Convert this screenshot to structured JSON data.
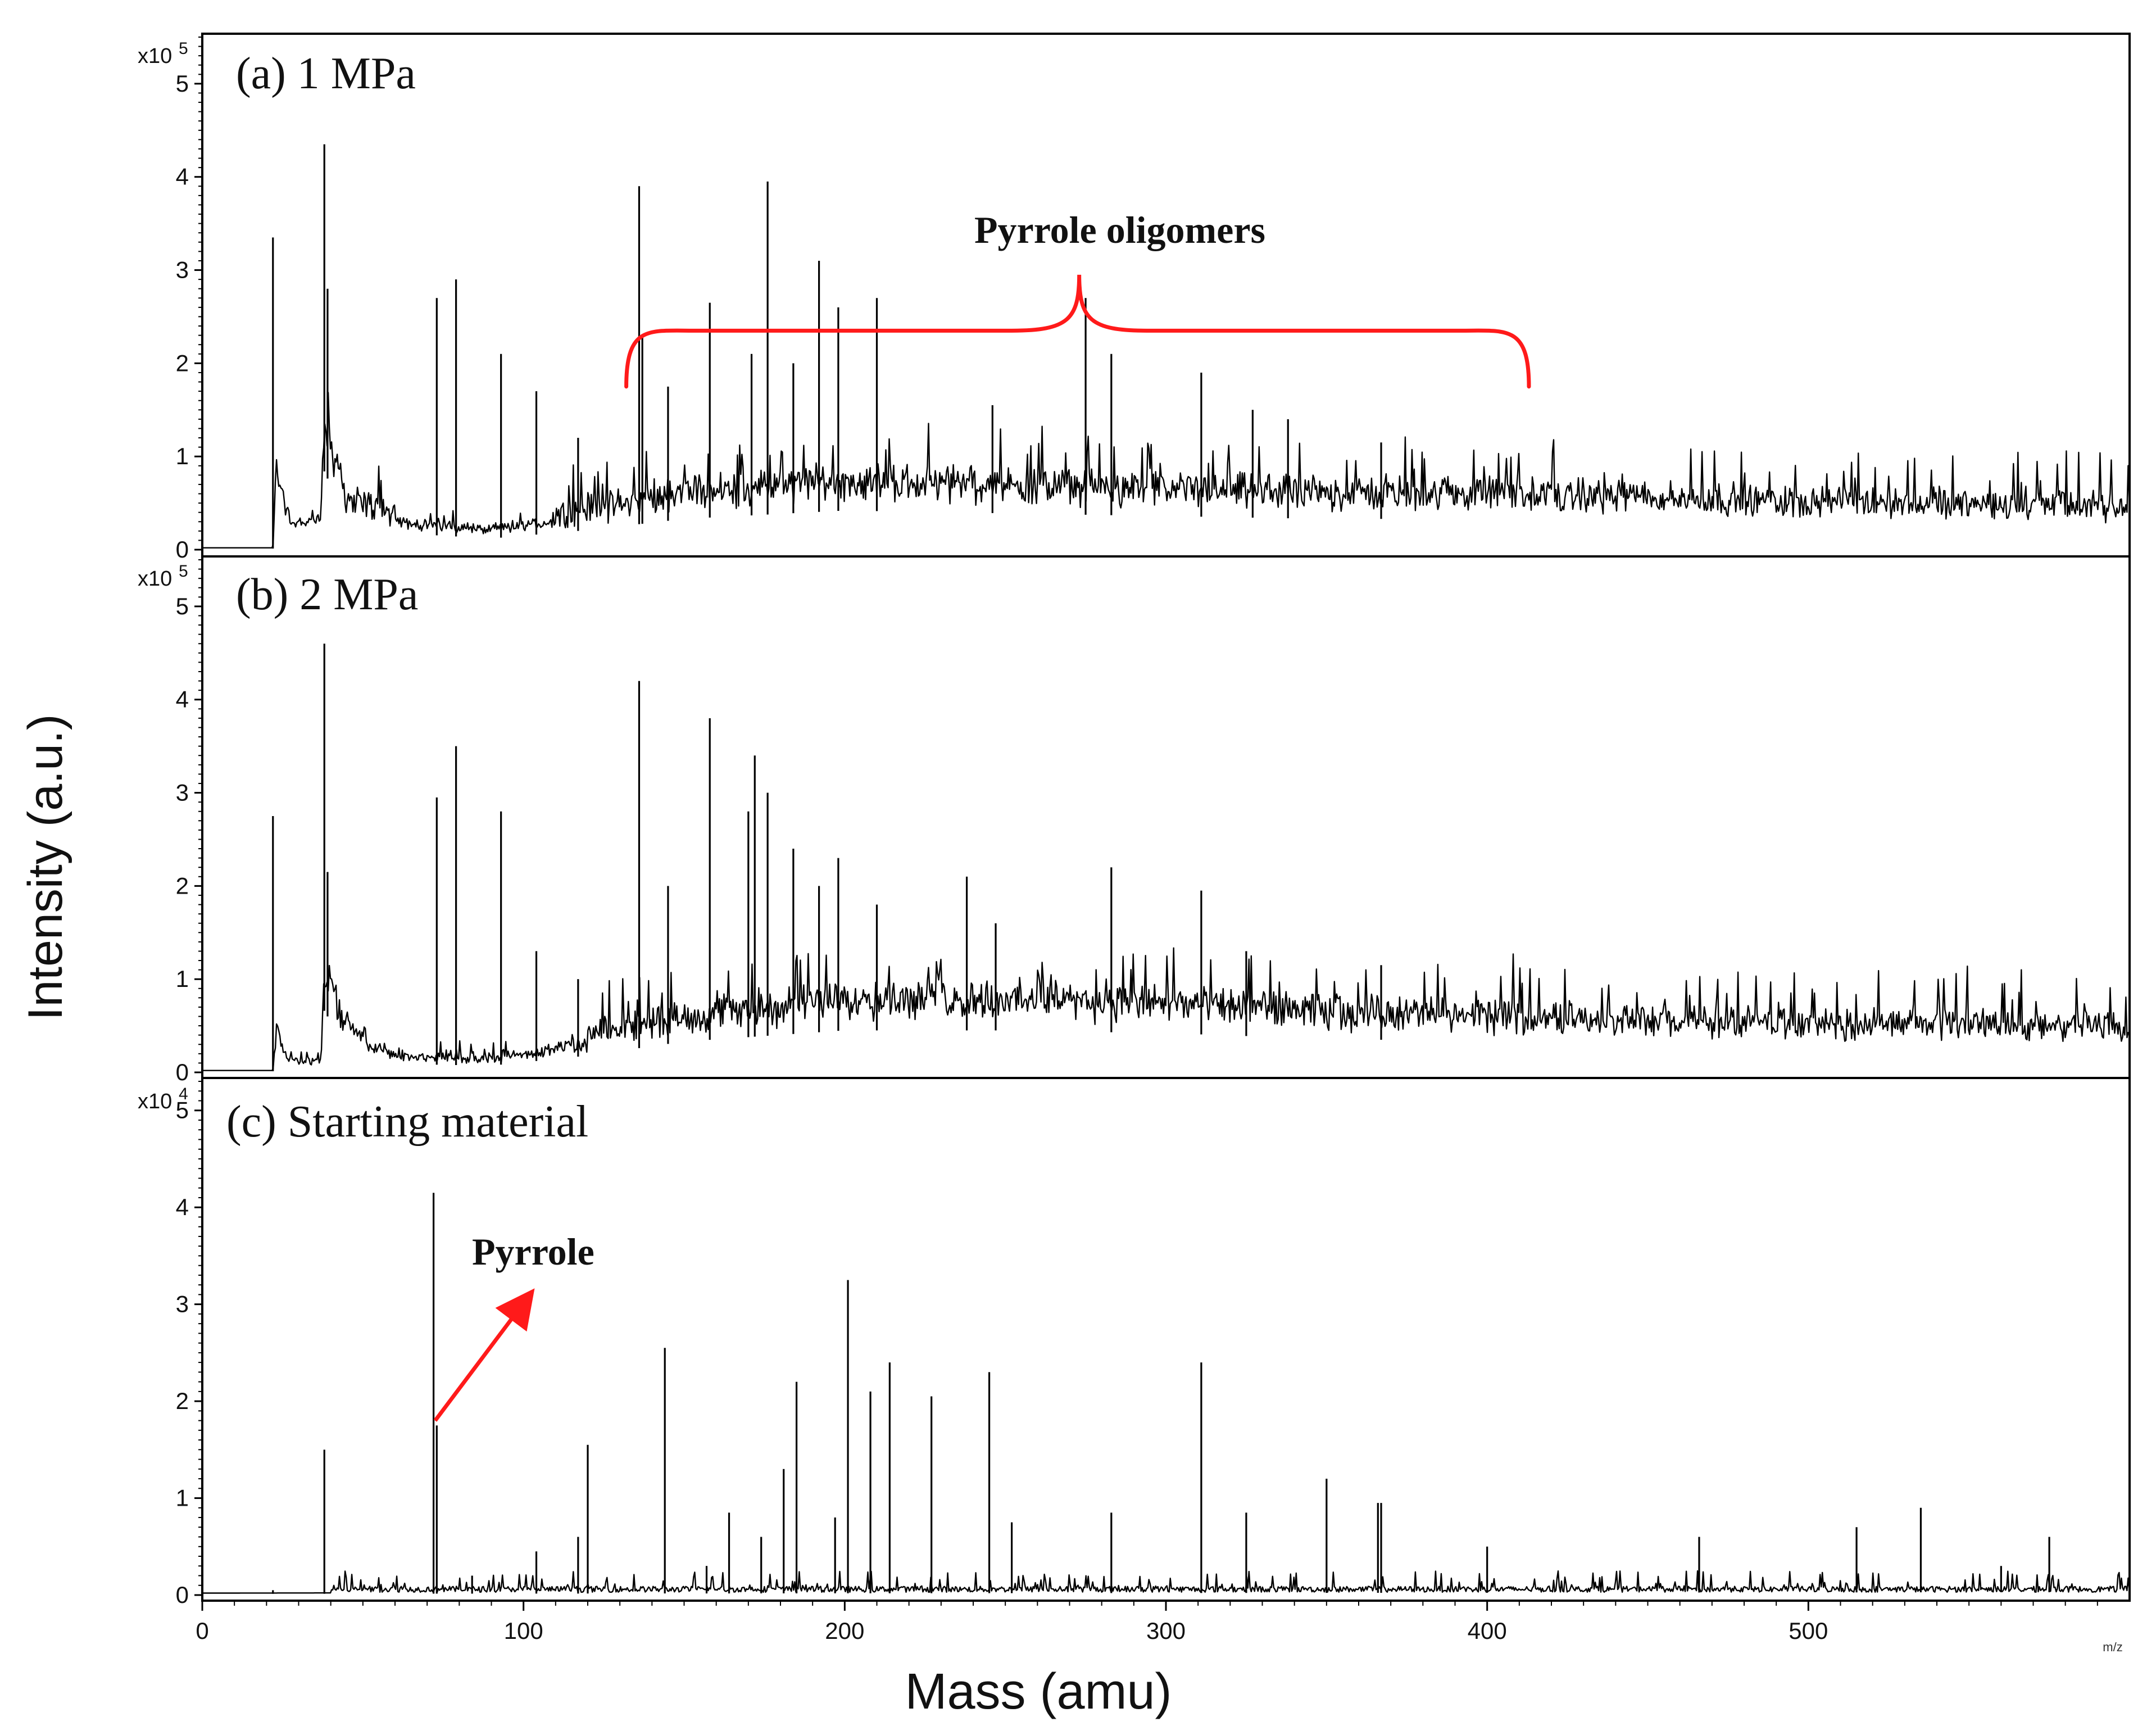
{
  "chart_data": {
    "type": "line",
    "figure": {
      "ylabel": "Intensity (a.u.)",
      "xlabel": "Mass (amu)",
      "x_unit_tag": "m/z",
      "xlim": [
        0,
        600
      ],
      "xticks": [
        0,
        100,
        200,
        300,
        400,
        500
      ],
      "xtick_labels": [
        "0",
        "100",
        "200",
        "300",
        "400",
        "500"
      ]
    },
    "panels": [
      {
        "id": "a",
        "title": "(a) 1 MPa",
        "scale_label": "x10",
        "scale_exp": "5",
        "ylim": [
          0,
          5.5
        ],
        "yticks": [
          0,
          1,
          2,
          3,
          4,
          5
        ],
        "ytick_labels": [
          "0",
          "1",
          "2",
          "3",
          "4",
          "5"
        ],
        "baseline": [
          [
            0,
            0.02
          ],
          [
            22,
            0.02
          ],
          [
            23,
            0.8
          ],
          [
            27,
            0.3
          ],
          [
            37,
            0.3
          ],
          [
            38,
            1.4
          ],
          [
            45,
            0.5
          ],
          [
            60,
            0.3
          ],
          [
            90,
            0.2
          ],
          [
            120,
            0.35
          ],
          [
            150,
            0.55
          ],
          [
            200,
            0.7
          ],
          [
            250,
            0.65
          ],
          [
            300,
            0.6
          ],
          [
            350,
            0.55
          ],
          [
            400,
            0.55
          ],
          [
            450,
            0.5
          ],
          [
            500,
            0.45
          ],
          [
            550,
            0.42
          ],
          [
            600,
            0.38
          ]
        ],
        "peaks": [
          [
            22,
            3.35
          ],
          [
            38,
            4.35
          ],
          [
            39,
            2.8
          ],
          [
            73,
            2.7
          ],
          [
            79,
            2.9
          ],
          [
            93,
            2.1
          ],
          [
            104,
            1.7
          ],
          [
            117,
            1.2
          ],
          [
            136,
            3.9
          ],
          [
            137,
            2.3
          ],
          [
            145,
            1.75
          ],
          [
            158,
            2.65
          ],
          [
            171,
            2.1
          ],
          [
            176,
            3.95
          ],
          [
            184,
            2.0
          ],
          [
            192,
            3.1
          ],
          [
            198,
            2.6
          ],
          [
            210,
            2.7
          ],
          [
            246,
            1.55
          ],
          [
            275,
            2.7
          ],
          [
            283,
            2.1
          ],
          [
            311,
            1.9
          ],
          [
            327,
            1.5
          ],
          [
            338,
            1.4
          ],
          [
            367,
            1.15
          ]
        ],
        "annotations": [
          {
            "text": "Pyrrole oligomers",
            "x_center": 273,
            "y": 3.5,
            "bracket_x": [
              132,
              413
            ],
            "bracket_y_top": 2.35,
            "bracket_y_end": 1.75
          }
        ]
      },
      {
        "id": "b",
        "title": "(b) 2 MPa",
        "scale_label": "x10",
        "scale_exp": "5",
        "ylim": [
          0,
          5.5
        ],
        "yticks": [
          0,
          1,
          2,
          3,
          4,
          5
        ],
        "ytick_labels": [
          "0",
          "1",
          "2",
          "3",
          "4",
          "5"
        ],
        "baseline": [
          [
            0,
            0.02
          ],
          [
            22,
            0.02
          ],
          [
            23,
            0.4
          ],
          [
            27,
            0.1
          ],
          [
            37,
            0.1
          ],
          [
            38,
            1.1
          ],
          [
            45,
            0.4
          ],
          [
            60,
            0.15
          ],
          [
            90,
            0.12
          ],
          [
            120,
            0.3
          ],
          [
            150,
            0.55
          ],
          [
            200,
            0.75
          ],
          [
            250,
            0.75
          ],
          [
            300,
            0.7
          ],
          [
            350,
            0.6
          ],
          [
            400,
            0.55
          ],
          [
            450,
            0.48
          ],
          [
            500,
            0.45
          ],
          [
            550,
            0.45
          ],
          [
            600,
            0.4
          ]
        ],
        "peaks": [
          [
            22,
            2.75
          ],
          [
            38,
            4.6
          ],
          [
            39,
            2.15
          ],
          [
            73,
            2.95
          ],
          [
            79,
            3.5
          ],
          [
            93,
            2.8
          ],
          [
            104,
            1.3
          ],
          [
            117,
            1.0
          ],
          [
            136,
            4.2
          ],
          [
            145,
            2.0
          ],
          [
            158,
            3.8
          ],
          [
            170,
            2.8
          ],
          [
            172,
            3.4
          ],
          [
            176,
            3.0
          ],
          [
            184,
            2.4
          ],
          [
            192,
            2.0
          ],
          [
            198,
            2.3
          ],
          [
            210,
            1.8
          ],
          [
            238,
            2.1
          ],
          [
            247,
            1.6
          ],
          [
            283,
            2.2
          ],
          [
            311,
            1.95
          ],
          [
            325,
            1.3
          ],
          [
            367,
            1.15
          ]
        ],
        "annotations": []
      },
      {
        "id": "c",
        "title": "(c) Starting material",
        "scale_label": "x10",
        "scale_exp": "4",
        "ylim": [
          0,
          5.3
        ],
        "yticks": [
          0,
          1,
          2,
          3,
          4,
          5
        ],
        "ytick_labels": [
          "0",
          "1",
          "2",
          "3",
          "4",
          "5"
        ],
        "baseline": [
          [
            0,
            0.02
          ],
          [
            600,
            0.05
          ]
        ],
        "peaks": [
          [
            22,
            0.05
          ],
          [
            38,
            1.5
          ],
          [
            72,
            4.15
          ],
          [
            73,
            1.75
          ],
          [
            84,
            0.2
          ],
          [
            104,
            0.45
          ],
          [
            117,
            0.6
          ],
          [
            120,
            1.55
          ],
          [
            144,
            2.55
          ],
          [
            157,
            0.3
          ],
          [
            164,
            0.85
          ],
          [
            174,
            0.6
          ],
          [
            181,
            1.3
          ],
          [
            185,
            2.2
          ],
          [
            197,
            0.8
          ],
          [
            201,
            3.25
          ],
          [
            208,
            2.1
          ],
          [
            214,
            2.4
          ],
          [
            227,
            2.05
          ],
          [
            245,
            2.3
          ],
          [
            252,
            0.75
          ],
          [
            283,
            0.85
          ],
          [
            311,
            2.4
          ],
          [
            325,
            0.85
          ],
          [
            350,
            1.2
          ],
          [
            366,
            0.95
          ],
          [
            367,
            0.95
          ],
          [
            400,
            0.5
          ],
          [
            466,
            0.6
          ],
          [
            515,
            0.7
          ],
          [
            535,
            0.9
          ],
          [
            560,
            0.3
          ],
          [
            575,
            0.6
          ]
        ],
        "annotations": [
          {
            "text": "Pyrrole",
            "label_x": 84,
            "label_y": 3.65,
            "arrow_from": [
              72.5,
              1.8
            ],
            "arrow_to": [
              102,
              3.1
            ]
          }
        ]
      }
    ]
  }
}
